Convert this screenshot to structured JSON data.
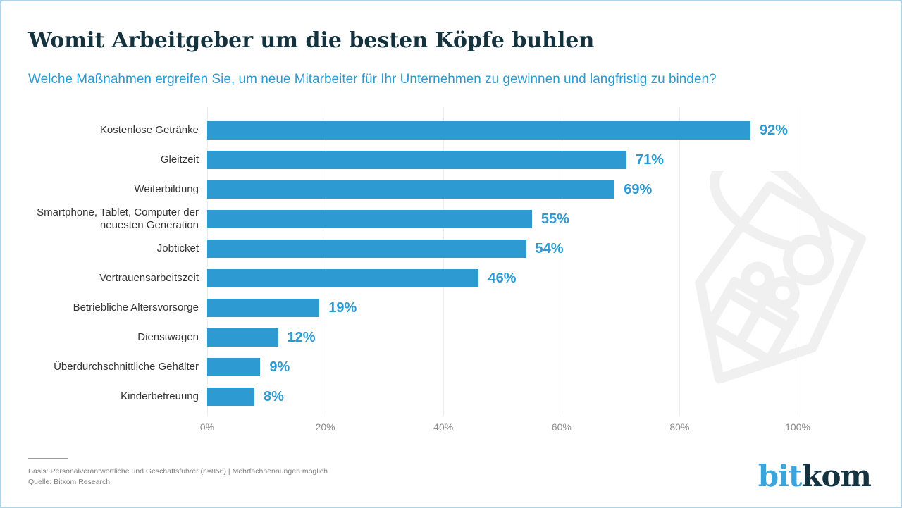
{
  "header": {
    "title": "Womit Arbeitgeber um die besten Köpfe buhlen",
    "subtitle": "Welche Maßnahmen ergreifen Sie, um neue Mitarbeiter für Ihr Unternehmen zu gewinnen und langfristig zu binden?"
  },
  "chart_data": {
    "type": "bar",
    "orientation": "horizontal",
    "categories": [
      "Kostenlose Getränke",
      "Gleitzeit",
      "Weiterbildung",
      "Smartphone, Tablet, Computer der neuesten Generation",
      "Jobticket",
      "Vertrauensarbeitszeit",
      "Betriebliche Altersvorsorge",
      "Dienstwagen",
      "Überdurchschnittliche Gehälter",
      "Kinderbetreuung"
    ],
    "values": [
      92,
      71,
      69,
      55,
      54,
      46,
      19,
      12,
      9,
      8
    ],
    "value_labels": [
      "92%",
      "71%",
      "69%",
      "55%",
      "54%",
      "46%",
      "19%",
      "12%",
      "9%",
      "8%"
    ],
    "x_ticks": [
      "0%",
      "20%",
      "40%",
      "60%",
      "80%",
      "100%"
    ],
    "xlim": [
      0,
      100
    ],
    "grid": "vertical-light",
    "legend": "none",
    "bar_color": "#2d9ad2"
  },
  "footer": {
    "basis": "Basis: Personalverantwortliche und Geschäftsführer (n=856) | Mehrfachnennungen möglich",
    "quelle": "Quelle: Bitkom Research",
    "logo_part1": "bit",
    "logo_part2": "kom"
  },
  "icons": {
    "watermark": "price-tag-gift-watermark-icon"
  },
  "colors": {
    "accent_blue": "#2d9ad2",
    "title_dark": "#14333e",
    "logo_blue": "#3aa5dc",
    "logo_dark": "#14333e",
    "grid_gray": "#ececec",
    "axis_text_gray": "#8c8c8c",
    "watermark_gray": "#f0f0f0",
    "frame_border": "#aed3e4"
  }
}
